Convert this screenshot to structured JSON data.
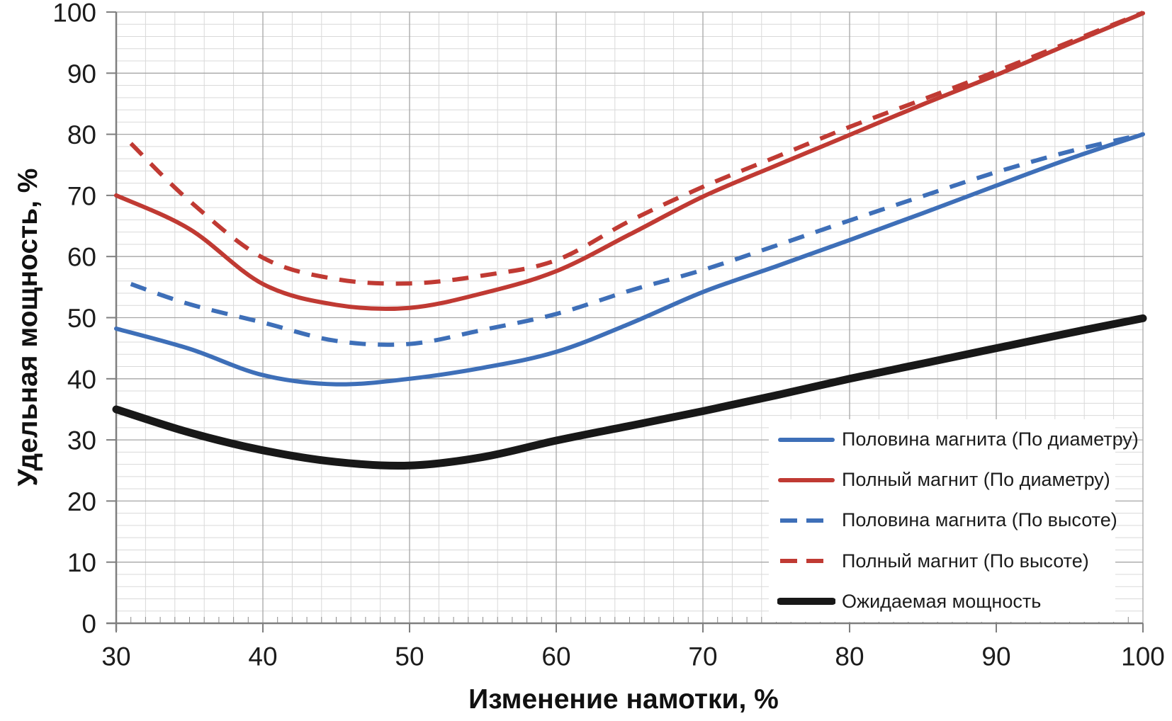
{
  "chart_data": {
    "type": "line",
    "title": "",
    "xlabel": "Изменение намотки, %",
    "ylabel": "Удельная мощность, %",
    "xlim": [
      30,
      100
    ],
    "ylim": [
      0,
      100
    ],
    "x_ticks": [
      30,
      40,
      50,
      60,
      70,
      80,
      90,
      100
    ],
    "y_ticks": [
      0,
      10,
      20,
      30,
      40,
      50,
      60,
      70,
      80,
      90,
      100
    ],
    "x_minor_step": 2,
    "y_minor_step": 2,
    "grid": "major+minor",
    "legend_position": "inside bottom-right",
    "series": [
      {
        "name": "Половина магнита (По диаметру)",
        "color": "#3E6FB8",
        "style": "solid",
        "width": 6,
        "x": [
          30,
          35,
          40,
          45,
          50,
          55,
          60,
          65,
          70,
          75,
          80,
          85,
          90,
          95,
          100
        ],
        "y": [
          48.2,
          44.9,
          40.6,
          39.1,
          40.0,
          41.8,
          44.4,
          49.0,
          54.2,
          58.4,
          62.7,
          67.1,
          71.6,
          76.0,
          80.0
        ]
      },
      {
        "name": "Полный магнит (По диаметру)",
        "color": "#C03A33",
        "style": "solid",
        "width": 6,
        "x": [
          30,
          35,
          40,
          45,
          50,
          55,
          60,
          65,
          70,
          75,
          80,
          85,
          90,
          95,
          100
        ],
        "y": [
          70.0,
          64.5,
          55.5,
          52.1,
          51.6,
          54.0,
          57.6,
          63.6,
          69.8,
          74.9,
          79.9,
          84.9,
          89.7,
          94.8,
          99.8
        ]
      },
      {
        "name": "Половина магнита (По высоте)",
        "color": "#3E6FB8",
        "style": "dashed",
        "width": 6,
        "x": [
          31,
          35,
          40,
          45,
          50,
          55,
          60,
          65,
          70,
          75,
          80,
          85,
          90,
          95,
          100
        ],
        "y": [
          55.5,
          52.2,
          49.2,
          46.2,
          45.7,
          48.0,
          50.6,
          54.4,
          57.8,
          61.8,
          65.9,
          69.9,
          73.8,
          77.2,
          80.0
        ]
      },
      {
        "name": "Полный магнит (По высоте)",
        "color": "#C03A33",
        "style": "dashed",
        "width": 6,
        "x": [
          31,
          35,
          40,
          45,
          50,
          55,
          60,
          65,
          70,
          75,
          80,
          85,
          90,
          95,
          100
        ],
        "y": [
          78.5,
          69.1,
          59.8,
          56.3,
          55.6,
          56.9,
          59.4,
          65.8,
          71.4,
          76.3,
          81.2,
          85.7,
          90.3,
          95.1,
          99.9
        ]
      },
      {
        "name": "Ожидаемая мощность",
        "color": "#181818",
        "style": "solid",
        "width": 11,
        "x": [
          30,
          35,
          40,
          45,
          50,
          55,
          60,
          65,
          70,
          75,
          80,
          85,
          90,
          95,
          100
        ],
        "y": [
          35.0,
          31.2,
          28.3,
          26.4,
          25.8,
          27.2,
          29.9,
          32.3,
          34.7,
          37.3,
          40.0,
          42.5,
          45.0,
          47.5,
          49.9
        ]
      }
    ]
  },
  "colors": {
    "background": "#FFFFFF",
    "grid_minor": "#D9D9D9",
    "grid_major": "#A6A6A6",
    "axis": "#7F7F7F",
    "tick": "#8C8C8C",
    "text": "#1C1C1C",
    "series_blue": "#3E6FB8",
    "series_red": "#C03A33",
    "series_black": "#181818"
  }
}
